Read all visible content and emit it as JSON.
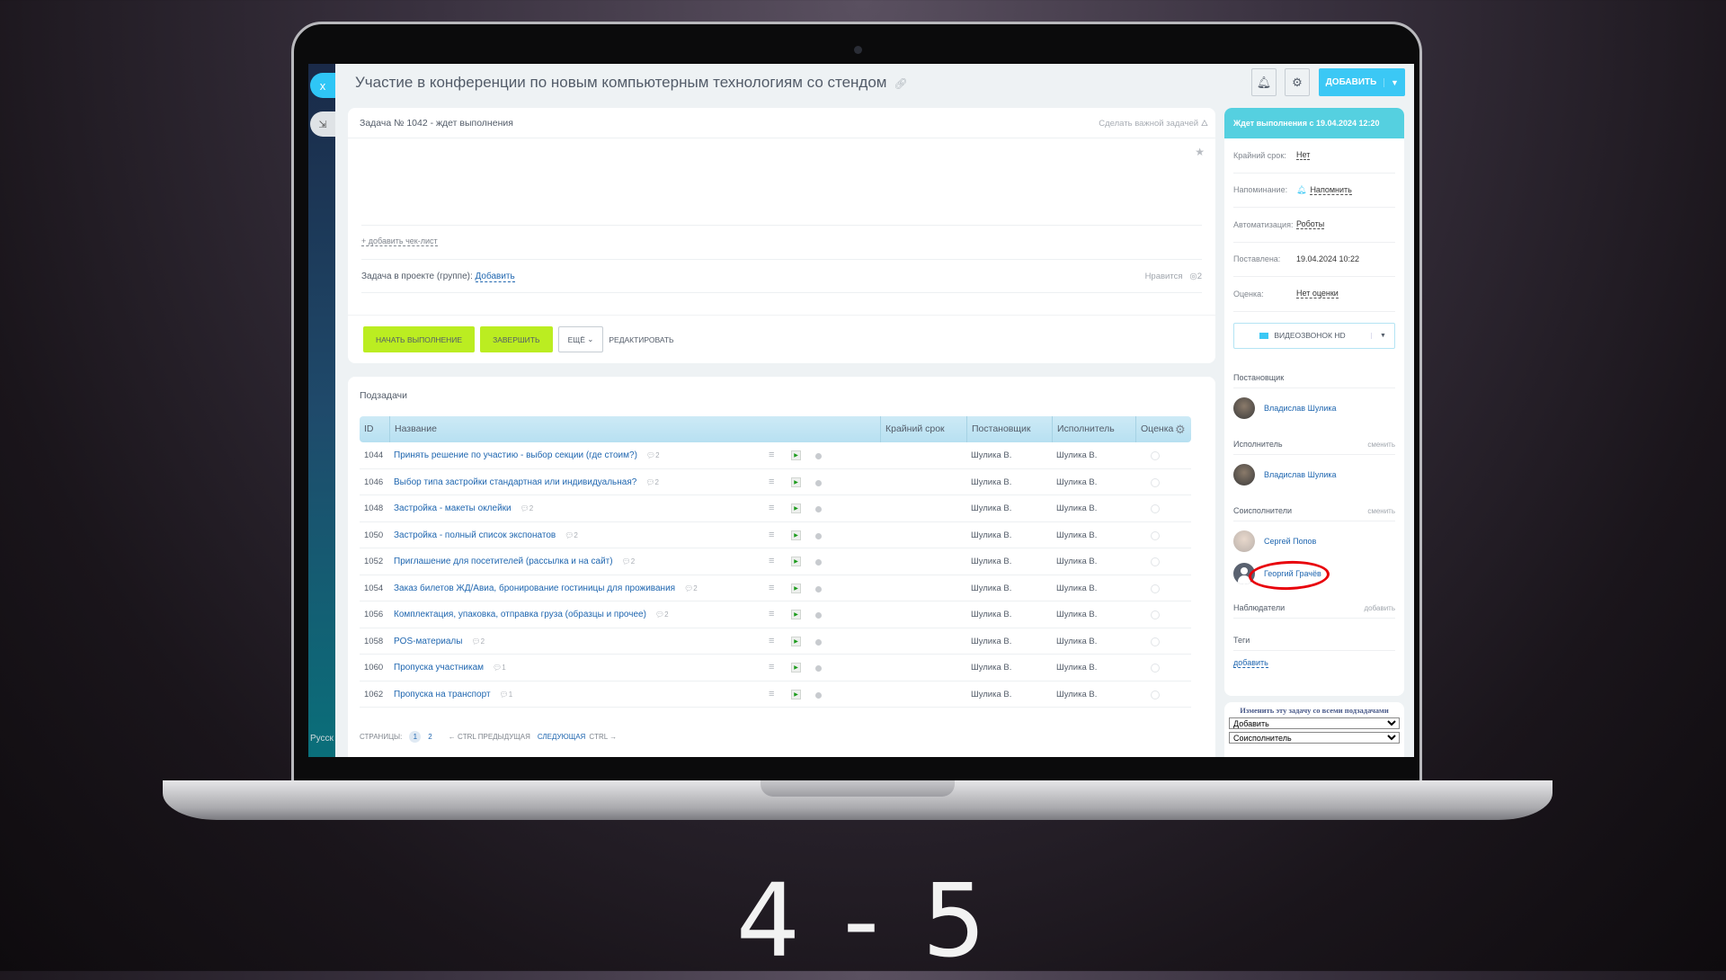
{
  "slide_label": "4 - 5",
  "header": {
    "title": "Участие в конференции по новым компьютерным технологиям со стендом",
    "add_label": "ДОБАВИТЬ",
    "close_label": "x",
    "lang": "Русск"
  },
  "task": {
    "status_line": "Задача № 1042 - ждет выполнения",
    "make_important": "Сделать важной задачей",
    "add_checklist": "+ добавить чек-лист",
    "project_label": "Задача в проекте (группе):",
    "project_add": "Добавить",
    "like_label": "Нравится",
    "like_count": "2"
  },
  "actions": {
    "start": "НАЧАТЬ ВЫПОЛНЕНИЕ",
    "finish": "ЗАВЕРШИТЬ",
    "more": "ЕЩЁ",
    "edit": "РЕДАКТИРОВАТЬ"
  },
  "subtasks": {
    "title": "Подзадачи",
    "columns": {
      "id": "ID",
      "name": "Название",
      "deadline": "Крайний срок",
      "creator": "Постановщик",
      "assignee": "Исполнитель",
      "rating": "Оценка"
    },
    "rows": [
      {
        "id": "1044",
        "name": "Принять решение по участию - выбор секции (где стоим?)",
        "comments": "2",
        "creator": "Шулика В.",
        "assignee": "Шулика В."
      },
      {
        "id": "1046",
        "name": "Выбор типа застройки стандартная или индивидуальная?",
        "comments": "2",
        "creator": "Шулика В.",
        "assignee": "Шулика В."
      },
      {
        "id": "1048",
        "name": "Застройка - макеты оклейки",
        "comments": "2",
        "creator": "Шулика В.",
        "assignee": "Шулика В."
      },
      {
        "id": "1050",
        "name": "Застройка - полный список экспонатов",
        "comments": "2",
        "creator": "Шулика В.",
        "assignee": "Шулика В."
      },
      {
        "id": "1052",
        "name": "Приглашение для посетителей (рассылка и на сайт)",
        "comments": "2",
        "creator": "Шулика В.",
        "assignee": "Шулика В."
      },
      {
        "id": "1054",
        "name": "Заказ билетов ЖД/Авиа, бронирование гостиницы для проживания",
        "comments": "2",
        "creator": "Шулика В.",
        "assignee": "Шулика В."
      },
      {
        "id": "1056",
        "name": "Комплектация, упаковка, отправка груза (образцы и прочее)",
        "comments": "2",
        "creator": "Шулика В.",
        "assignee": "Шулика В."
      },
      {
        "id": "1058",
        "name": "POS-материалы",
        "comments": "2",
        "creator": "Шулика В.",
        "assignee": "Шулика В."
      },
      {
        "id": "1060",
        "name": "Пропуска участникам",
        "comments": "1",
        "creator": "Шулика В.",
        "assignee": "Шулика В."
      },
      {
        "id": "1062",
        "name": "Пропуска на транспорт",
        "comments": "1",
        "creator": "Шулика В.",
        "assignee": "Шулика В."
      }
    ],
    "pager": {
      "label": "СТРАНИЦЫ:",
      "pages": [
        "1",
        "2"
      ],
      "prev": "← CTRL  ПРЕДЫДУЩАЯ",
      "next": "СЛЕДУЮЩАЯ",
      "next_hint": "CTRL →"
    }
  },
  "sidebar": {
    "status": "Ждет выполнения с 19.04.2024 12:20",
    "props": [
      {
        "key": "Крайний срок:",
        "value": "Нет"
      },
      {
        "key": "Напоминание:",
        "value": "Напомнить"
      },
      {
        "key": "Автоматизация:",
        "value": "Роботы"
      },
      {
        "key": "Поставлена:",
        "value": "19.04.2024 10:22"
      },
      {
        "key": "Оценка:",
        "value": "Нет оценки"
      }
    ],
    "video": "ВИДЕОЗВОНОК HD",
    "creator_label": "Постановщик",
    "creator": "Владислав Шулика",
    "assignee_label": "Исполнитель",
    "assignee": "Владислав Шулика",
    "change": "сменить",
    "coassignees_label": "Соисполнители",
    "coassignees": [
      "Сергей Попов",
      "Георгий Грачёв"
    ],
    "observers_label": "Наблюдатели",
    "observers_add": "добавить",
    "tags_label": "Теги",
    "tags_add": "добавить"
  },
  "bulk": {
    "title": "Изменить эту задачу со всеми подзадачами",
    "action": "Добавить",
    "role": "Соисполнитель"
  },
  "colors": {
    "accent": "#3bc8f5",
    "green_button": "#bbed21",
    "status_band": "#55d0e0",
    "link": "#2067b0",
    "highlight": "#e8000a"
  }
}
